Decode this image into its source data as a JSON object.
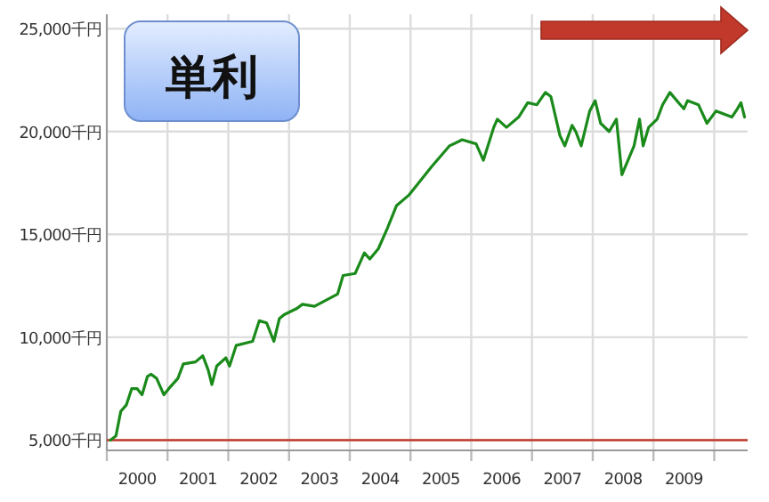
{
  "chart_data": {
    "type": "line",
    "title": "単利",
    "x": [
      2000.06,
      2000.15,
      2000.23,
      2000.32,
      2000.41,
      2000.5,
      2000.58,
      2000.67,
      2000.73,
      2000.82,
      2000.94,
      2001.02,
      2001.17,
      2001.26,
      2001.46,
      2001.58,
      2001.67,
      2001.73,
      2001.81,
      2001.96,
      2002.02,
      2002.13,
      2002.4,
      2002.51,
      2002.63,
      2002.75,
      2002.84,
      2002.92,
      2003.13,
      2003.22,
      2003.42,
      2003.8,
      2003.89,
      2004.09,
      2004.24,
      2004.33,
      2004.47,
      2004.62,
      2004.77,
      2004.97,
      2005.35,
      2005.64,
      2005.85,
      2006.08,
      2006.2,
      2006.37,
      2006.43,
      2006.58,
      2006.78,
      2006.93,
      2007.08,
      2007.22,
      2007.31,
      2007.46,
      2007.54,
      2007.66,
      2007.72,
      2007.81,
      2007.95,
      2008.04,
      2008.13,
      2008.27,
      2008.39,
      2008.48,
      2008.68,
      2008.77,
      2008.83,
      2008.92,
      2009.06,
      2009.15,
      2009.27,
      2009.5,
      2009.56,
      2009.74,
      2009.88,
      2010.03,
      2010.29,
      2010.38,
      2010.44,
      2010.5
    ],
    "series": [
      {
        "color": "#1a8a1a",
        "values": [
          5000,
          5200,
          6400,
          6700,
          7500,
          7500,
          7200,
          8100,
          8200,
          8000,
          7200,
          7500,
          8000,
          8700,
          8800,
          9100,
          8400,
          7700,
          8600,
          9000,
          8600,
          9600,
          9800,
          10800,
          10700,
          9800,
          10900,
          11100,
          11400,
          11600,
          11500,
          12100,
          13000,
          13100,
          14100,
          13800,
          14300,
          15300,
          16400,
          16900,
          18300,
          19300,
          19600,
          19400,
          18600,
          20200,
          20600,
          20200,
          20700,
          21400,
          21300,
          21900,
          21700,
          19800,
          19300,
          20300,
          20000,
          19300,
          21000,
          21500,
          20400,
          20000,
          20600,
          17900,
          19300,
          20600,
          19300,
          20200,
          20600,
          21300,
          21900,
          21100,
          21500,
          21300,
          20400,
          21000,
          20700,
          21100,
          21400,
          20700
        ]
      }
    ],
    "xlim": [
      2000,
      2010.55
    ],
    "xticks": [
      {
        "value": 2000,
        "label": null
      },
      {
        "value": 2000.5,
        "label": "2000"
      },
      {
        "value": 2001,
        "label": null
      },
      {
        "value": 2001.5,
        "label": "2001"
      },
      {
        "value": 2002,
        "label": null
      },
      {
        "value": 2002.5,
        "label": "2002"
      },
      {
        "value": 2003,
        "label": null
      },
      {
        "value": 2003.5,
        "label": "2003"
      },
      {
        "value": 2004,
        "label": null
      },
      {
        "value": 2004.5,
        "label": "2004"
      },
      {
        "value": 2005,
        "label": null
      },
      {
        "value": 2005.5,
        "label": "2005"
      },
      {
        "value": 2006,
        "label": null
      },
      {
        "value": 2006.5,
        "label": "2006"
      },
      {
        "value": 2007,
        "label": null
      },
      {
        "value": 2007.5,
        "label": "2007"
      },
      {
        "value": 2008,
        "label": null
      },
      {
        "value": 2008.5,
        "label": "2008"
      },
      {
        "value": 2009,
        "label": null
      },
      {
        "value": 2009.5,
        "label": "2009"
      },
      {
        "value": 2010,
        "label": null
      }
    ],
    "ylim": [
      4500,
      25700
    ],
    "yticks": [
      {
        "value": 5000,
        "label": "5,000千円"
      },
      {
        "value": 10000,
        "label": "10,000千円"
      },
      {
        "value": 15000,
        "label": "15,000千円"
      },
      {
        "value": 20000,
        "label": "20,000千円"
      },
      {
        "value": 25000,
        "label": "25,000千円"
      }
    ],
    "ref_lines": [
      {
        "axis": "y",
        "value": 5000,
        "label": null,
        "color": "#c0392b"
      }
    ],
    "grid": true,
    "marker": "none",
    "line_style": "solid"
  }
}
